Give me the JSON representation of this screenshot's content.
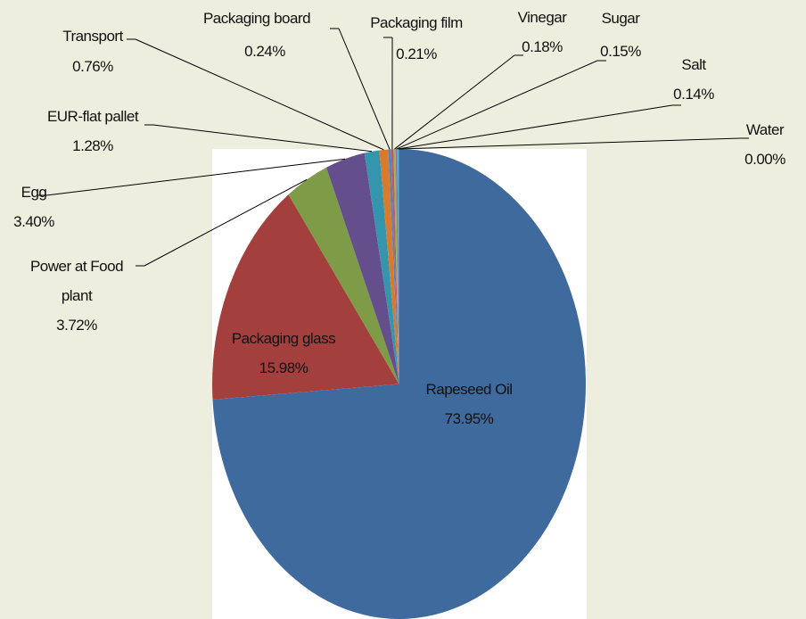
{
  "chart_data": {
    "type": "pie",
    "categories": [
      "Rapeseed Oil",
      "Packaging glass",
      "Power at Food plant",
      "Egg",
      "EUR-flat pallet",
      "Transport",
      "Packaging board",
      "Packaging film",
      "Vinegar",
      "Sugar",
      "Salt",
      "Water"
    ],
    "values": [
      73.95,
      15.98,
      3.72,
      3.4,
      1.28,
      0.76,
      0.24,
      0.21,
      0.18,
      0.15,
      0.14,
      0.0
    ],
    "value_labels": [
      "73.95%",
      "15.98%",
      "3.72%",
      "3.40%",
      "1.28%",
      "0.76%",
      "0.24%",
      "0.21%",
      "0.18%",
      "0.15%",
      "0.14%",
      "0.00%"
    ],
    "colors": [
      "#3f6a9d",
      "#a3403d",
      "#7e9b47",
      "#644f8c",
      "#3595ac",
      "#d97a2c",
      "#5b83b8",
      "#bd5b58",
      "#9bb25e",
      "#8a73aa",
      "#5ab0c9",
      "#f29a50"
    ]
  }
}
